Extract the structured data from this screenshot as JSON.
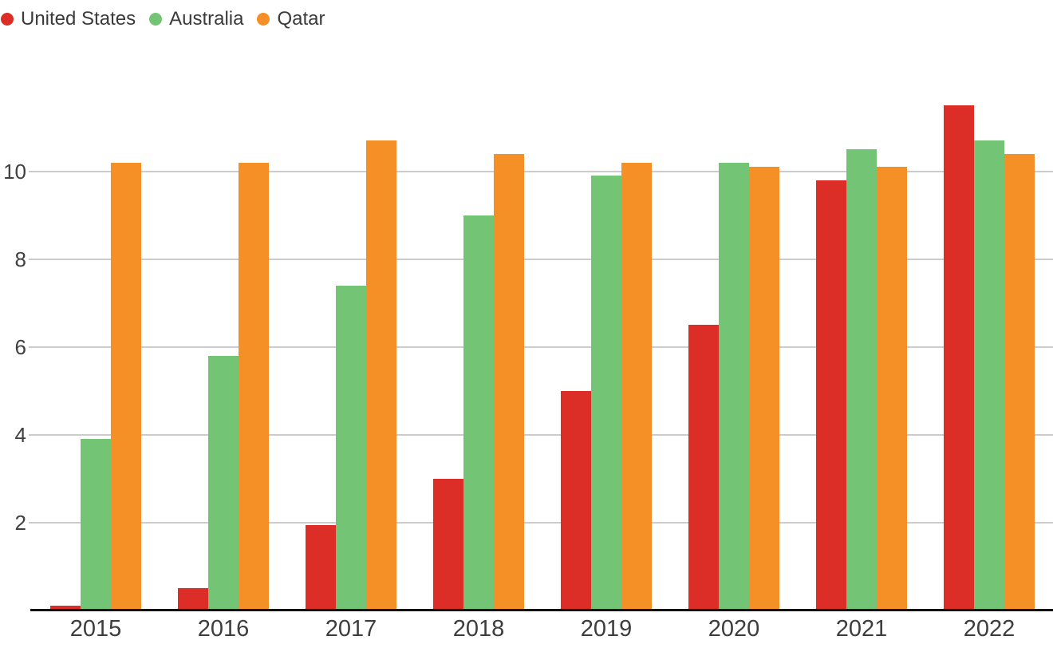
{
  "chart_data": {
    "type": "bar",
    "title": "",
    "xlabel": "",
    "ylabel": "",
    "categories": [
      "2015",
      "2016",
      "2017",
      "2018",
      "2019",
      "2020",
      "2021",
      "2022"
    ],
    "series": [
      {
        "name": "United States",
        "color": "#dc2e26",
        "values": [
          0.1,
          0.5,
          1.95,
          3.0,
          5.0,
          6.5,
          9.8,
          11.5
        ]
      },
      {
        "name": "Australia",
        "color": "#74c476",
        "values": [
          3.9,
          5.8,
          7.4,
          9.0,
          9.9,
          10.2,
          10.5,
          10.7
        ]
      },
      {
        "name": "Qatar",
        "color": "#f49026",
        "values": [
          10.2,
          10.2,
          10.7,
          10.4,
          10.2,
          10.1,
          10.1,
          10.4
        ]
      }
    ],
    "y_ticks": [
      2,
      4,
      6,
      8,
      10
    ],
    "ylim": [
      0,
      12
    ],
    "grid": true,
    "legend_position": "top-left",
    "colors": {
      "grid": "#cccccc",
      "axis_line": "#111111",
      "tick_label": "#404040",
      "legend_label": "#3b3b3b",
      "background": "#ffffff"
    }
  }
}
